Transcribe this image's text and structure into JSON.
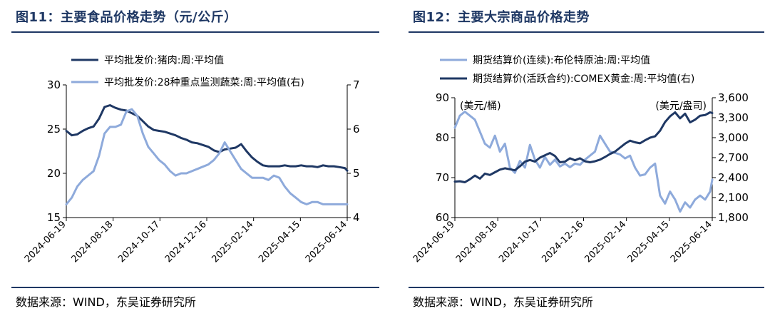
{
  "panels": [
    {
      "title": "图11：主要食品价格走势（元/公斤）",
      "source": "数据来源：WIND，东吴证券研究所"
    },
    {
      "title": "图12：主要大宗商品价格走势",
      "source": "数据来源：WIND，东吴证券研究所"
    }
  ],
  "chart_data": [
    {
      "type": "line",
      "x_ticks": [
        "2024-06-19",
        "2024-08-18",
        "2024-10-17",
        "2024-12-16",
        "2025-02-14",
        "2025-04-15",
        "2025-06-14"
      ],
      "y_left": {
        "ticks": [
          15,
          20,
          25,
          30
        ],
        "ylim": [
          15,
          30
        ]
      },
      "y_right": {
        "ticks": [
          4,
          5,
          6,
          7
        ],
        "ylim": [
          4,
          7
        ]
      },
      "legend_position": "top",
      "grid": false,
      "series": [
        {
          "name": "平均批发价:猪肉:周:平均值",
          "axis": "left",
          "color": "#1f3864",
          "dates": [
            "2024-06-19",
            "2024-06-26",
            "2024-07-03",
            "2024-07-10",
            "2024-07-17",
            "2024-07-24",
            "2024-07-31",
            "2024-08-07",
            "2024-08-14",
            "2024-08-21",
            "2024-08-28",
            "2024-09-04",
            "2024-09-11",
            "2024-09-18",
            "2024-09-25",
            "2024-10-02",
            "2024-10-09",
            "2024-10-16",
            "2024-10-23",
            "2024-10-30",
            "2024-11-06",
            "2024-11-13",
            "2024-11-20",
            "2024-11-27",
            "2024-12-04",
            "2024-12-11",
            "2024-12-18",
            "2024-12-25",
            "2025-01-01",
            "2025-01-08",
            "2025-01-15",
            "2025-01-22",
            "2025-01-29",
            "2025-02-05",
            "2025-02-12",
            "2025-02-19",
            "2025-02-26",
            "2025-03-05",
            "2025-03-12",
            "2025-03-19",
            "2025-03-26",
            "2025-04-02",
            "2025-04-09",
            "2025-04-16",
            "2025-04-23",
            "2025-04-30",
            "2025-05-07",
            "2025-05-14",
            "2025-05-21",
            "2025-05-28",
            "2025-06-04",
            "2025-06-11",
            "2025-06-14"
          ],
          "values": [
            24.8,
            24.3,
            24.4,
            24.8,
            25.1,
            25.3,
            26.2,
            27.5,
            27.7,
            27.4,
            27.2,
            27.1,
            26.8,
            26.5,
            25.9,
            25.3,
            24.9,
            24.8,
            24.7,
            24.5,
            24.3,
            24.0,
            23.8,
            23.5,
            23.4,
            23.2,
            23.0,
            22.6,
            22.4,
            22.7,
            22.8,
            22.9,
            23.3,
            22.5,
            21.8,
            21.3,
            20.9,
            20.8,
            20.8,
            20.8,
            20.9,
            20.8,
            20.8,
            20.9,
            20.8,
            20.8,
            20.7,
            20.9,
            20.8,
            20.8,
            20.7,
            20.6,
            20.3
          ]
        },
        {
          "name": "平均批发价:28种重点监测蔬菜:周:平均值(右)",
          "axis": "right",
          "color": "#8eaadb",
          "dates": [
            "2024-06-19",
            "2024-06-26",
            "2024-07-03",
            "2024-07-10",
            "2024-07-17",
            "2024-07-24",
            "2024-07-31",
            "2024-08-07",
            "2024-08-14",
            "2024-08-21",
            "2024-08-28",
            "2024-09-04",
            "2024-09-11",
            "2024-09-18",
            "2024-09-25",
            "2024-10-02",
            "2024-10-09",
            "2024-10-16",
            "2024-10-23",
            "2024-10-30",
            "2024-11-06",
            "2024-11-13",
            "2024-11-20",
            "2024-11-27",
            "2024-12-04",
            "2024-12-11",
            "2024-12-18",
            "2024-12-25",
            "2025-01-01",
            "2025-01-08",
            "2025-01-15",
            "2025-01-22",
            "2025-01-29",
            "2025-02-05",
            "2025-02-12",
            "2025-02-19",
            "2025-02-26",
            "2025-03-05",
            "2025-03-12",
            "2025-03-19",
            "2025-03-26",
            "2025-04-02",
            "2025-04-09",
            "2025-04-16",
            "2025-04-23",
            "2025-04-30",
            "2025-05-07",
            "2025-05-14",
            "2025-05-21",
            "2025-05-28",
            "2025-06-04",
            "2025-06-11",
            "2025-06-14"
          ],
          "values": [
            4.3,
            4.45,
            4.7,
            4.85,
            4.95,
            5.05,
            5.4,
            5.9,
            6.05,
            6.05,
            6.1,
            6.4,
            6.45,
            6.3,
            5.9,
            5.6,
            5.45,
            5.3,
            5.2,
            5.05,
            4.95,
            5.0,
            5.0,
            5.05,
            5.1,
            5.15,
            5.2,
            5.3,
            5.45,
            5.7,
            5.5,
            5.3,
            5.1,
            5.0,
            4.9,
            4.9,
            4.9,
            4.85,
            4.95,
            4.9,
            4.7,
            4.55,
            4.45,
            4.35,
            4.3,
            4.35,
            4.35,
            4.3,
            4.3,
            4.3,
            4.3,
            4.3,
            4.3
          ]
        }
      ]
    },
    {
      "type": "line",
      "x_ticks": [
        "2024-06-19",
        "2024-08-18",
        "2024-10-17",
        "2024-12-16",
        "2025-02-14",
        "2025-04-15",
        "2025-06-14"
      ],
      "y_left": {
        "ticks": [
          60,
          70,
          80,
          90
        ],
        "ylim": [
          60,
          90
        ],
        "unit": "(美元/桶)"
      },
      "y_right": {
        "ticks": [
          "1,800",
          "2,100",
          "2,400",
          "2,700",
          "3,000",
          "3,300",
          "3,600"
        ],
        "ylim": [
          1800,
          3600
        ],
        "unit": "(美元/盎司)"
      },
      "legend_position": "top",
      "grid": false,
      "series": [
        {
          "name": "期货结算价(连续):布伦特原油:周:平均值",
          "axis": "left",
          "color": "#8eaadb",
          "dates": [
            "2024-06-19",
            "2024-06-26",
            "2024-07-03",
            "2024-07-10",
            "2024-07-17",
            "2024-07-24",
            "2024-07-31",
            "2024-08-07",
            "2024-08-14",
            "2024-08-21",
            "2024-08-28",
            "2024-09-04",
            "2024-09-11",
            "2024-09-18",
            "2024-09-25",
            "2024-10-02",
            "2024-10-09",
            "2024-10-16",
            "2024-10-23",
            "2024-10-30",
            "2024-11-06",
            "2024-11-13",
            "2024-11-20",
            "2024-11-27",
            "2024-12-04",
            "2024-12-11",
            "2024-12-18",
            "2024-12-25",
            "2025-01-01",
            "2025-01-08",
            "2025-01-15",
            "2025-01-22",
            "2025-01-29",
            "2025-02-05",
            "2025-02-12",
            "2025-02-19",
            "2025-02-26",
            "2025-03-05",
            "2025-03-12",
            "2025-03-19",
            "2025-03-26",
            "2025-04-02",
            "2025-04-09",
            "2025-04-16",
            "2025-04-23",
            "2025-04-30",
            "2025-05-07",
            "2025-05-14",
            "2025-05-21",
            "2025-05-28",
            "2025-06-04",
            "2025-06-11",
            "2025-06-14"
          ],
          "values": [
            82.5,
            85.5,
            86.5,
            85.5,
            84.5,
            81.5,
            78.5,
            77.5,
            80.5,
            76.5,
            78.5,
            72.5,
            71.2,
            74.2,
            72.5,
            78.2,
            74.5,
            72.5,
            75.2,
            73.2,
            74.5,
            72.8,
            73.5,
            72.6,
            73.5,
            73.2,
            74.5,
            75.5,
            76.5,
            80.5,
            78.5,
            76.5,
            76.2,
            75.8,
            74.8,
            75.5,
            72.5,
            70.5,
            70.8,
            72.5,
            73.5,
            65.5,
            63.5,
            66.5,
            64.5,
            61.5,
            63.8,
            62.5,
            64.5,
            65.5,
            64.5,
            66.5,
            69.5
          ]
        },
        {
          "name": "期货结算价(活跃合约):COMEX黄金:周:平均值(右)",
          "axis": "right",
          "color": "#1f3864",
          "dates": [
            "2024-06-19",
            "2024-06-26",
            "2024-07-03",
            "2024-07-10",
            "2024-07-17",
            "2024-07-24",
            "2024-07-31",
            "2024-08-07",
            "2024-08-14",
            "2024-08-21",
            "2024-08-28",
            "2024-09-04",
            "2024-09-11",
            "2024-09-18",
            "2024-09-25",
            "2024-10-02",
            "2024-10-09",
            "2024-10-16",
            "2024-10-23",
            "2024-10-30",
            "2024-11-06",
            "2024-11-13",
            "2024-11-20",
            "2024-11-27",
            "2024-12-04",
            "2024-12-11",
            "2024-12-18",
            "2024-12-25",
            "2025-01-01",
            "2025-01-08",
            "2025-01-15",
            "2025-01-22",
            "2025-01-29",
            "2025-02-05",
            "2025-02-12",
            "2025-02-19",
            "2025-02-26",
            "2025-03-05",
            "2025-03-12",
            "2025-03-19",
            "2025-03-26",
            "2025-04-02",
            "2025-04-09",
            "2025-04-16",
            "2025-04-23",
            "2025-04-30",
            "2025-05-07",
            "2025-05-14",
            "2025-05-21",
            "2025-05-28",
            "2025-06-04",
            "2025-06-11",
            "2025-06-14"
          ],
          "values": [
            2340,
            2345,
            2330,
            2375,
            2430,
            2385,
            2460,
            2440,
            2480,
            2520,
            2540,
            2525,
            2510,
            2570,
            2640,
            2665,
            2640,
            2700,
            2735,
            2770,
            2725,
            2630,
            2640,
            2690,
            2660,
            2690,
            2645,
            2630,
            2645,
            2670,
            2710,
            2755,
            2790,
            2850,
            2910,
            2955,
            2930,
            2915,
            2960,
            3000,
            3020,
            3105,
            3235,
            3320,
            3380,
            3290,
            3360,
            3230,
            3270,
            3330,
            3340,
            3380,
            3370
          ]
        }
      ]
    }
  ]
}
